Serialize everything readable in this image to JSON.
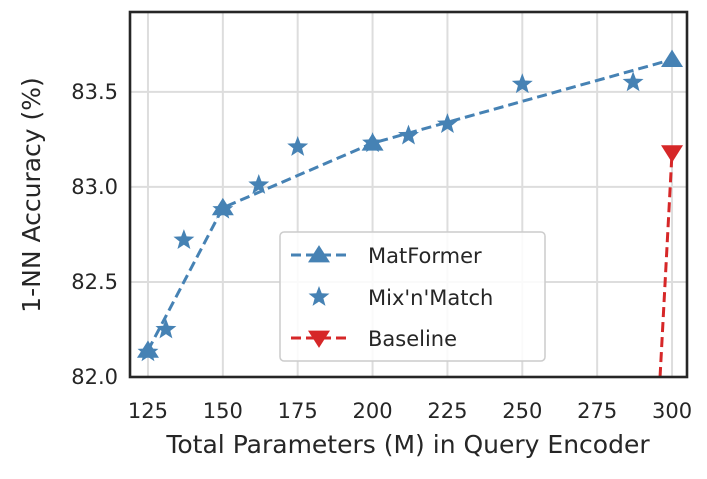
{
  "chart_data": {
    "type": "line",
    "title": "",
    "xlabel": "Total Parameters (M) in Query Encoder",
    "ylabel": "1-NN Accuracy (%)",
    "xlim": [
      119,
      305
    ],
    "ylim": [
      82.0,
      83.92
    ],
    "x_ticks": [
      125,
      150,
      175,
      200,
      225,
      250,
      275,
      300
    ],
    "y_ticks": [
      82.0,
      82.5,
      83.0,
      83.5
    ],
    "x_tick_labels": [
      "125",
      "150",
      "175",
      "200",
      "225",
      "250",
      "275",
      "300"
    ],
    "y_tick_labels": [
      "82.0",
      "82.5",
      "83.0",
      "83.5"
    ],
    "grid": true,
    "legend_position": "lower-center",
    "series": [
      {
        "name": "MatFormer",
        "color": "#4682b4",
        "marker": "triangle-up",
        "linestyle": "dashed",
        "x": [
          125,
          150,
          200,
          300
        ],
        "y": [
          82.14,
          82.89,
          83.23,
          83.67
        ]
      },
      {
        "name": "Mix'n'Match",
        "color": "#4682b4",
        "marker": "star",
        "linestyle": "dashed",
        "x": [
          125,
          131,
          137,
          150,
          162,
          175,
          200,
          212,
          225,
          250,
          287
        ],
        "y": [
          82.13,
          82.25,
          82.72,
          82.88,
          83.01,
          83.21,
          83.23,
          83.27,
          83.33,
          83.54,
          83.55
        ]
      },
      {
        "name": "Baseline",
        "color": "#d62728",
        "marker": "triangle-down",
        "linestyle": "dashed",
        "x": [
          296,
          300
        ],
        "y": [
          82.0,
          83.18
        ],
        "marker_points": [
          [
            300,
            83.18
          ]
        ]
      }
    ]
  }
}
